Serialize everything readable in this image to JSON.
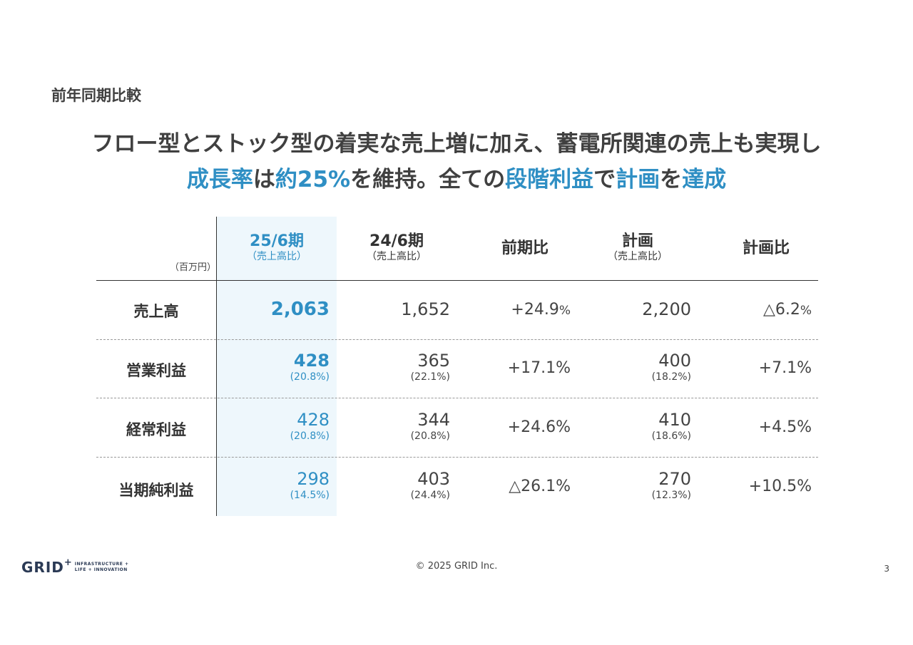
{
  "section_label": "前年同期比較",
  "headline": {
    "line1": "フロー型とストック型の着実な売上増に加え、蓄電所関連の売上も実現し",
    "line2": [
      {
        "text": "成長率",
        "hl": true
      },
      {
        "text": "は",
        "hl": false
      },
      {
        "text": "約25%",
        "hl": true
      },
      {
        "text": "を維持。全ての",
        "hl": false
      },
      {
        "text": "段階利益",
        "hl": true
      },
      {
        "text": "で",
        "hl": false
      },
      {
        "text": "計画",
        "hl": true
      },
      {
        "text": "を",
        "hl": false
      },
      {
        "text": "達成",
        "hl": true
      }
    ]
  },
  "table": {
    "unit": "（百万円）",
    "columns": [
      {
        "main": "25/6期",
        "sub": "（売上高比）"
      },
      {
        "main": "24/6期",
        "sub": "（売上高比）"
      },
      {
        "main": "前期比",
        "sub": ""
      },
      {
        "main": "計画",
        "sub": "（売上高比）"
      },
      {
        "main": "計画比",
        "sub": ""
      }
    ],
    "rows": [
      {
        "label": "売上高",
        "cur": "2,063",
        "cur_pct": "",
        "prev": "1,652",
        "prev_pct": "",
        "yoy": "+24.9",
        "yoy_unit": "%",
        "plan": "2,200",
        "plan_pct": "",
        "vs_plan": "△6.2",
        "vs_plan_unit": "%"
      },
      {
        "label": "営業利益",
        "cur": "428",
        "cur_pct": "(20.8%)",
        "prev": "365",
        "prev_pct": "(22.1%)",
        "yoy": "+17.1%",
        "yoy_unit": "",
        "plan": "400",
        "plan_pct": "(18.2%)",
        "vs_plan": "+7.1%",
        "vs_plan_unit": ""
      },
      {
        "label": "経常利益",
        "cur": "428",
        "cur_pct": "(20.8%)",
        "prev": "344",
        "prev_pct": "(20.8%)",
        "yoy": "+24.6%",
        "yoy_unit": "",
        "plan": "410",
        "plan_pct": "(18.6%)",
        "vs_plan": "+4.5%",
        "vs_plan_unit": ""
      },
      {
        "label": "当期純利益",
        "cur": "298",
        "cur_pct": "(14.5%)",
        "prev": "403",
        "prev_pct": "(24.4%)",
        "yoy": "△26.1%",
        "yoy_unit": "",
        "plan": "270",
        "plan_pct": "(12.3%)",
        "vs_plan": "+10.5%",
        "vs_plan_unit": ""
      }
    ]
  },
  "footer": {
    "logo_text": "GRID",
    "logo_plus": "+",
    "logo_tag_1": "INFRASTRUCTURE +",
    "logo_tag_2": "LIFE + INNOVATION",
    "copyright": "© 2025 GRID Inc.",
    "page": "3"
  },
  "colors": {
    "accent": "#2f8fc4",
    "highlight_bg": "#eef7fc",
    "text": "#404040"
  }
}
